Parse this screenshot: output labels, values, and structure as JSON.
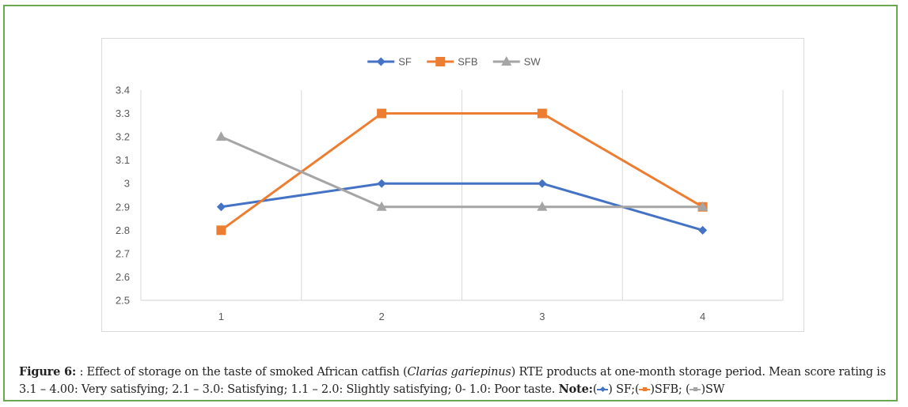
{
  "chart_data": {
    "type": "line",
    "title": "",
    "xlabel": "",
    "ylabel": "",
    "categories": [
      "1",
      "2",
      "3",
      "4"
    ],
    "ylim": [
      2.5,
      3.4
    ],
    "yticks": [
      "3.4",
      "3.3",
      "3.2",
      "3.1",
      "3",
      "2.9",
      "2.8",
      "2.7",
      "2.6",
      "2.5"
    ],
    "ytick_values": [
      3.4,
      3.3,
      3.2,
      3.1,
      3.0,
      2.9,
      2.8,
      2.7,
      2.6,
      2.5
    ],
    "grid": "vertical-between-categories",
    "legend_position": "top-center",
    "series": [
      {
        "name": "SF",
        "values": [
          2.9,
          3.0,
          3.0,
          2.8
        ],
        "color": "#4472c4",
        "marker": "diamond"
      },
      {
        "name": "SFB",
        "values": [
          2.8,
          3.3,
          3.3,
          2.9
        ],
        "color": "#ed7d31",
        "marker": "square"
      },
      {
        "name": "SW",
        "values": [
          3.2,
          2.9,
          2.9,
          2.9
        ],
        "color": "#a5a5a5",
        "marker": "triangle"
      }
    ]
  },
  "caption": {
    "label": "Figure 6:",
    "text_1": " : Effect of storage on the taste of smoked African catfish (",
    "species": "Clarias gariepinus",
    "text_2": ") RTE products at one-month storage period. Mean score rating is 3.1 – 4.00: Very satisfying; 2.1 – 3.0: Satisfying; 1.1 – 2.0: Slightly satisfying; 0- 1.0: Poor taste. ",
    "note_label": "Note:",
    "note_open_1": "(",
    "note_sf": ") SF;",
    "note_open_2": "(",
    "note_sfb": ")SFB; ",
    "note_open_3": "(",
    "note_sw": ")SW"
  },
  "colors": {
    "frame_border": "#6aa84f",
    "sf": "#4472c4",
    "sfb": "#ed7d31",
    "sw": "#a5a5a5",
    "grid": "#d9d9d9",
    "tick_text": "#595959"
  }
}
